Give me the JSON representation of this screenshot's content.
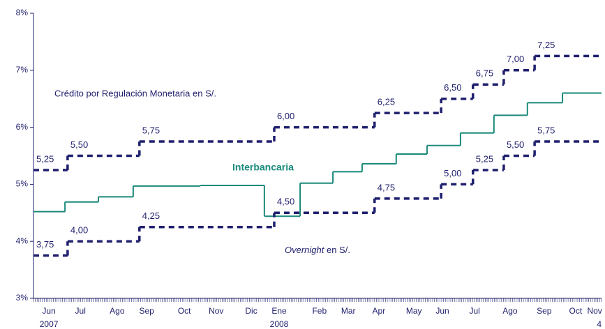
{
  "chart_data": {
    "type": "step",
    "xlim": [
      0,
      17.32
    ],
    "ylim": [
      3,
      8
    ],
    "yticks": [
      {
        "value": 3,
        "label": "3%"
      },
      {
        "value": 4,
        "label": "4%"
      },
      {
        "value": 5,
        "label": "5%"
      },
      {
        "value": 6,
        "label": "6%"
      },
      {
        "value": 7,
        "label": "7%"
      },
      {
        "value": 8,
        "label": "8%"
      }
    ],
    "xticks": [
      {
        "value": 0.47,
        "label": "Jun"
      },
      {
        "value": 1.43,
        "label": "Jul"
      },
      {
        "value": 2.55,
        "label": "Ago"
      },
      {
        "value": 3.45,
        "label": "Sep"
      },
      {
        "value": 4.6,
        "label": "Oct"
      },
      {
        "value": 5.57,
        "label": "Nov"
      },
      {
        "value": 6.64,
        "label": "Dic"
      },
      {
        "value": 7.49,
        "label": "Ene"
      },
      {
        "value": 8.72,
        "label": "Feb"
      },
      {
        "value": 9.6,
        "label": "Mar"
      },
      {
        "value": 10.53,
        "label": "Apr"
      },
      {
        "value": 11.6,
        "label": "May"
      },
      {
        "value": 12.47,
        "label": "Jun"
      },
      {
        "value": 13.45,
        "label": "Jul"
      },
      {
        "value": 14.53,
        "label": "Ago"
      },
      {
        "value": 15.57,
        "label": "Sep"
      },
      {
        "value": 16.53,
        "label": "Oct"
      },
      {
        "value": 17.11,
        "label": "Nov"
      }
    ],
    "year_labels": [
      {
        "value": 0.47,
        "label": "2007"
      },
      {
        "value": 7.49,
        "label": "2008"
      },
      {
        "value": 17.32,
        "label": "4"
      }
    ],
    "grid": false,
    "series": [
      {
        "name": "Crédito por Regulación Monetaria en S/.",
        "color": "#1f1f6e",
        "style": "dashed",
        "x": [
          0,
          1.04,
          3.23,
          7.34,
          10.4,
          12.43,
          13.4,
          14.34,
          15.28
        ],
        "values": [
          5.25,
          5.5,
          5.75,
          6,
          6.25,
          6.5,
          6.75,
          7,
          7.25
        ],
        "value_labels": [
          "5,25",
          "5,50",
          "5,75",
          "6,00",
          "6,25",
          "6,50",
          "6,75",
          "7,00",
          "7,25"
        ]
      },
      {
        "name": "Interbancaria",
        "color": "#1a8a7a",
        "style": "solid",
        "x": [
          0,
          0.96,
          1.98,
          3.04,
          5.09,
          7.04,
          8.13,
          9.13,
          10.02,
          11.06,
          12.0,
          13.02,
          14.04,
          15.06,
          16.13
        ],
        "values": [
          4.52,
          4.69,
          4.78,
          4.97,
          4.98,
          4.44,
          5.02,
          5.22,
          5.36,
          5.53,
          5.68,
          5.9,
          6.21,
          6.43,
          6.6
        ]
      },
      {
        "name": "Overnight en S/.",
        "color": "#1f1f6e",
        "style": "dashed",
        "x": [
          0,
          1.04,
          3.23,
          7.34,
          10.4,
          12.43,
          13.4,
          14.34,
          15.28
        ],
        "values": [
          3.75,
          4,
          4.25,
          4.5,
          4.75,
          5,
          5.25,
          5.5,
          5.75
        ],
        "value_labels": [
          "3,75",
          "4,00",
          "4,25",
          "4,50",
          "4,75",
          "5,00",
          "5,25",
          "5,50",
          "5,75"
        ]
      }
    ]
  }
}
